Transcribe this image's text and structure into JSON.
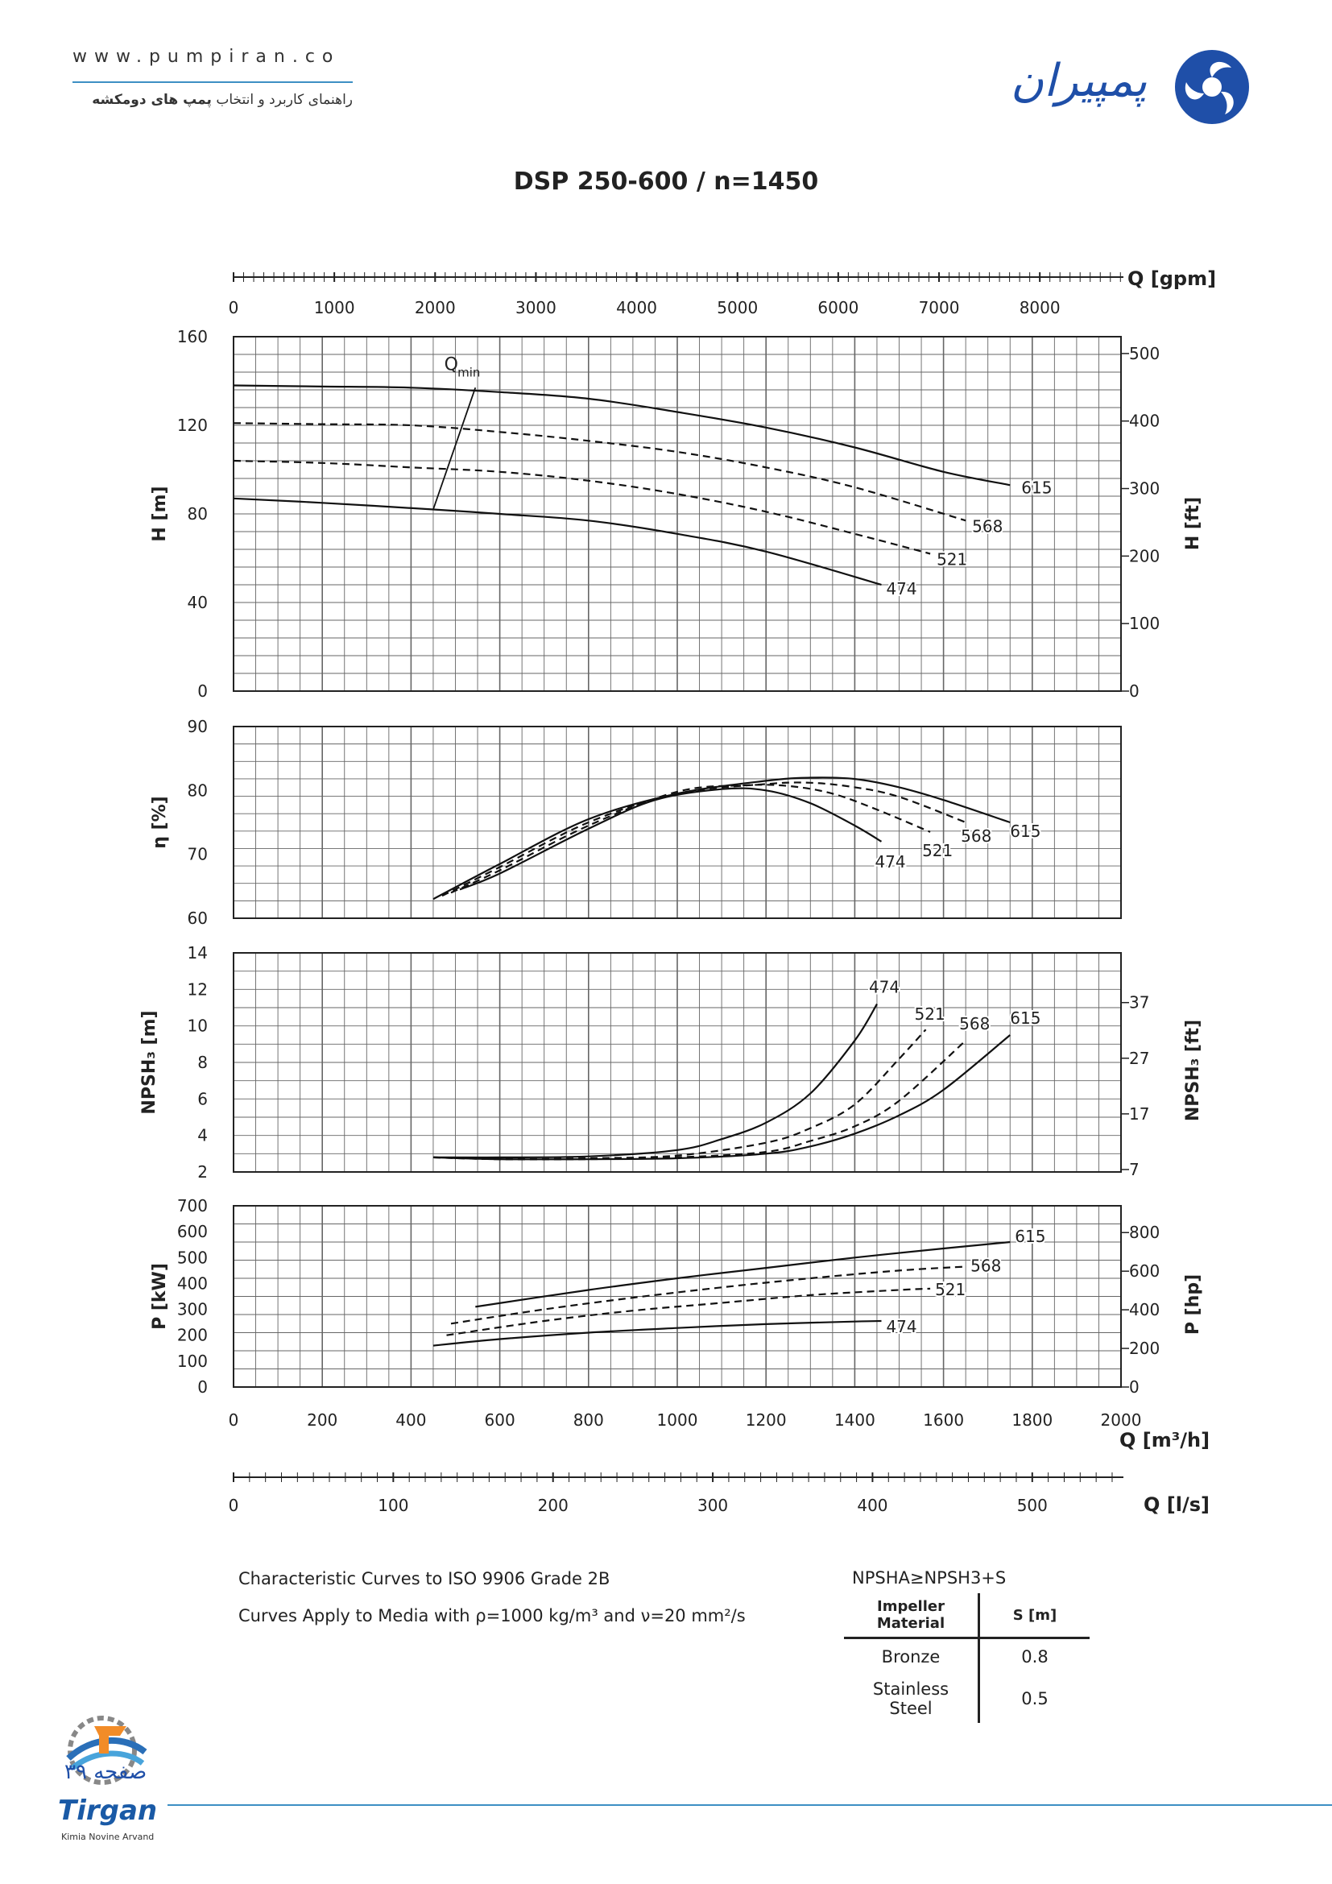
{
  "header": {
    "url": "www.pumpiran.co",
    "subtitle_prefix": "راهنمای کاربرد و انتخاب",
    "subtitle_bold": "پمپ های دومکشه",
    "brand": "پمپیران"
  },
  "title": "DSP 250-600 / n=1450",
  "axes": {
    "top_label": "Q [gpm]",
    "top_ticks": [
      "0",
      "1000",
      "2000",
      "3000",
      "4000",
      "5000",
      "6000",
      "7000",
      "8000"
    ],
    "bottom_label": "Q [m³/h]",
    "bottom_ticks": [
      "0",
      "200",
      "400",
      "600",
      "800",
      "1000",
      "1200",
      "1400",
      "1600",
      "1800",
      "2000"
    ],
    "ls_label": "Q [l/s]",
    "ls_ticks": [
      "0",
      "100",
      "200",
      "300",
      "400",
      "500"
    ],
    "head_label": "H [m]",
    "head_ticks": [
      "0",
      "40",
      "80",
      "120",
      "160"
    ],
    "head_ft_label": "H [ft]",
    "head_ft_ticks": [
      "0",
      "100",
      "200",
      "300",
      "400",
      "500"
    ],
    "eff_label": "η [%]",
    "eff_ticks": [
      "60",
      "70",
      "80",
      "90"
    ],
    "npsh_label": "NPSH₃ [m]",
    "npsh_ticks": [
      "2",
      "4",
      "6",
      "8",
      "10",
      "12",
      "14"
    ],
    "npsh_ft_label": "NPSH₃ [ft]",
    "npsh_ft_ticks": [
      "7",
      "17",
      "27",
      "37"
    ],
    "power_label": "P [kW]",
    "power_ticks": [
      "0",
      "100",
      "200",
      "300",
      "400",
      "500",
      "600",
      "700"
    ],
    "power_hp_label": "P [hp]",
    "power_hp_ticks": [
      "0",
      "200",
      "400",
      "600",
      "800"
    ],
    "qmin_label": "Q",
    "qmin_sub": "min"
  },
  "chart_data": [
    {
      "type": "line",
      "panel": "head",
      "xlabel": "Q [m³/h]",
      "ylabel": "H [m]",
      "xlim": [
        0,
        2000
      ],
      "ylim": [
        0,
        160
      ],
      "grid": true,
      "series": [
        {
          "name": "615",
          "style": "solid",
          "x": [
            0,
            200,
            400,
            600,
            800,
            1000,
            1200,
            1400,
            1600,
            1750
          ],
          "y": [
            138,
            137.5,
            137,
            135,
            132,
            126,
            119,
            110,
            99,
            93
          ]
        },
        {
          "name": "568",
          "style": "dashed",
          "x": [
            0,
            200,
            400,
            600,
            800,
            1000,
            1200,
            1400,
            1650
          ],
          "y": [
            121,
            120.5,
            120,
            117,
            113,
            108,
            101,
            92,
            77
          ]
        },
        {
          "name": "521",
          "style": "dashed",
          "x": [
            0,
            200,
            400,
            600,
            800,
            1000,
            1200,
            1400,
            1570
          ],
          "y": [
            104,
            103,
            101,
            99,
            95,
            89,
            81,
            71,
            62
          ]
        },
        {
          "name": "474",
          "style": "solid",
          "x": [
            0,
            200,
            450,
            600,
            800,
            1000,
            1200,
            1460
          ],
          "y": [
            87,
            85,
            82,
            80,
            77,
            71,
            63,
            48
          ]
        }
      ],
      "qmin_line": {
        "from": [
          450,
          82
        ],
        "to": [
          545,
          137
        ]
      }
    },
    {
      "type": "line",
      "panel": "efficiency",
      "xlabel": "Q [m³/h]",
      "ylabel": "η [%]",
      "xlim": [
        0,
        2000
      ],
      "ylim": [
        60,
        90
      ],
      "grid": true,
      "series": [
        {
          "name": "615",
          "style": "solid",
          "x": [
            450,
            600,
            800,
            1000,
            1200,
            1300,
            1400,
            1500,
            1600,
            1750
          ],
          "y": [
            63,
            68.5,
            75.5,
            79.5,
            81.5,
            82,
            81.8,
            80.5,
            78.5,
            75
          ]
        },
        {
          "name": "568",
          "style": "dashed",
          "x": [
            470,
            600,
            800,
            1000,
            1200,
            1300,
            1400,
            1500,
            1650
          ],
          "y": [
            63.5,
            68,
            75,
            79.5,
            81,
            81.2,
            80.5,
            79,
            75
          ]
        },
        {
          "name": "521",
          "style": "dashed",
          "x": [
            490,
            600,
            800,
            1000,
            1150,
            1250,
            1350,
            1450,
            1570
          ],
          "y": [
            64,
            67.5,
            74.5,
            79.8,
            80.8,
            80.7,
            79.5,
            77,
            73.5
          ]
        },
        {
          "name": "474",
          "style": "solid",
          "x": [
            510,
            600,
            800,
            950,
            1100,
            1200,
            1300,
            1400,
            1460
          ],
          "y": [
            64.5,
            67,
            74,
            78.5,
            80.2,
            80,
            78,
            74.5,
            72
          ]
        }
      ]
    },
    {
      "type": "line",
      "panel": "npsh",
      "xlabel": "Q [m³/h]",
      "ylabel": "NPSH₃ [m]",
      "xlim": [
        0,
        2000
      ],
      "ylim": [
        2,
        14
      ],
      "grid": true,
      "series": [
        {
          "name": "474",
          "style": "solid",
          "x": [
            450,
            600,
            800,
            1000,
            1100,
            1200,
            1300,
            1400,
            1450
          ],
          "y": [
            2.8,
            2.8,
            2.85,
            3.2,
            3.8,
            4.7,
            6.3,
            9.2,
            11.2
          ]
        },
        {
          "name": "521",
          "style": "dashed",
          "x": [
            450,
            600,
            800,
            1000,
            1200,
            1300,
            1400,
            1500,
            1560
          ],
          "y": [
            2.8,
            2.7,
            2.75,
            2.9,
            3.6,
            4.4,
            5.7,
            8.2,
            9.8
          ]
        },
        {
          "name": "568",
          "style": "dashed",
          "x": [
            450,
            600,
            800,
            1000,
            1200,
            1300,
            1400,
            1500,
            1650
          ],
          "y": [
            2.8,
            2.7,
            2.7,
            2.8,
            3.1,
            3.7,
            4.5,
            5.9,
            9.2
          ]
        },
        {
          "name": "615",
          "style": "solid",
          "x": [
            450,
            600,
            800,
            1000,
            1200,
            1300,
            1400,
            1500,
            1600,
            1750
          ],
          "y": [
            2.8,
            2.7,
            2.7,
            2.75,
            3.0,
            3.4,
            4.1,
            5.1,
            6.5,
            9.5
          ]
        }
      ]
    },
    {
      "type": "line",
      "panel": "power",
      "xlabel": "Q [m³/h]",
      "ylabel": "P [kW]",
      "xlim": [
        0,
        2000
      ],
      "ylim": [
        0,
        700
      ],
      "grid": true,
      "series": [
        {
          "name": "615",
          "style": "solid",
          "x": [
            545,
            800,
            1000,
            1200,
            1400,
            1600,
            1750
          ],
          "y": [
            310,
            375,
            420,
            460,
            500,
            535,
            560
          ]
        },
        {
          "name": "568",
          "style": "dashed",
          "x": [
            490,
            700,
            900,
            1100,
            1300,
            1500,
            1650
          ],
          "y": [
            245,
            300,
            345,
            385,
            420,
            450,
            465
          ]
        },
        {
          "name": "521",
          "style": "dashed",
          "x": [
            480,
            700,
            900,
            1100,
            1300,
            1500,
            1570
          ],
          "y": [
            200,
            255,
            295,
            325,
            355,
            375,
            380
          ]
        },
        {
          "name": "474",
          "style": "solid",
          "x": [
            450,
            600,
            800,
            1000,
            1200,
            1400,
            1460
          ],
          "y": [
            160,
            185,
            210,
            228,
            243,
            253,
            255
          ]
        }
      ]
    }
  ],
  "notes": {
    "line1": "Characteristic Curves to ISO 9906 Grade 2B",
    "line2": "Curves Apply to Media with  ρ=1000 kg/m³ and ν=20 mm²/s"
  },
  "npsh_rule": "NPSHA≥NPSH3+S",
  "material_table": {
    "header_material": "Impeller Material",
    "header_s": "S [m]",
    "rows": [
      {
        "material": "Bronze",
        "s": "0.8"
      },
      {
        "material": "Stainless Steel",
        "s": "0.5"
      }
    ]
  },
  "footer": {
    "page": "صفحه ۳۹",
    "brand": "Tirgan",
    "tagline": "Kimia Novine Arvand"
  },
  "colors": {
    "accent": "#3d8fc4",
    "brand_blue": "#1f4fa8",
    "curve": "#222222",
    "grid": "#555555"
  }
}
